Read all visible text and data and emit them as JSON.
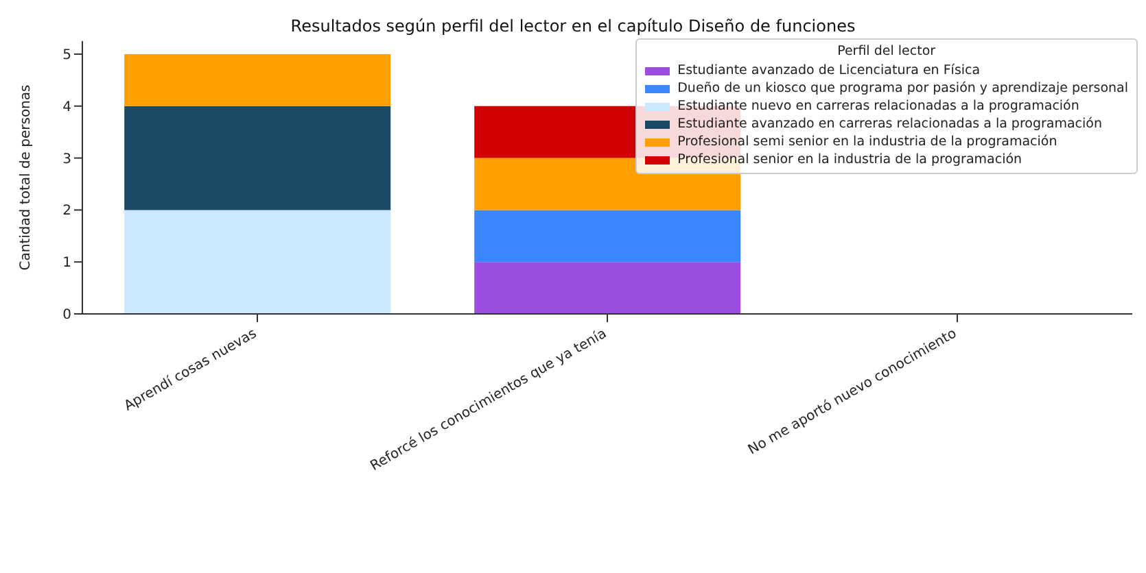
{
  "chart_data": {
    "type": "bar",
    "title": "Resultados según perfil del lector en el capítulo Diseño de funciones",
    "ylabel": "Cantidad total de personas",
    "legend_title": "Perfil del lector",
    "categories": [
      "Aprendí cosas nuevas",
      "Reforcé los conocimientos que ya tenía",
      "No me aportó nuevo conocimiento"
    ],
    "stacked": true,
    "ylim": [
      0,
      5.25
    ],
    "yticks": [
      0,
      1,
      2,
      3,
      4,
      5
    ],
    "grid": false,
    "legend": "top right",
    "series": [
      {
        "name": "Estudiante avanzado de Licenciatura en Física",
        "color": "#9b4ddf",
        "values": [
          0,
          1,
          0
        ]
      },
      {
        "name": "Dueño de un kiosco que programa por pasión y aprendizaje personal",
        "color": "#3a86ff",
        "values": [
          0,
          1,
          0
        ]
      },
      {
        "name": "Estudiante nuevo en carreras relacionadas a la programación",
        "color": "#cae9ff",
        "values": [
          2,
          0,
          0
        ]
      },
      {
        "name": "Estudiante avanzado en carreras relacionadas a la programación",
        "color": "#1b4965",
        "values": [
          2,
          0,
          0
        ]
      },
      {
        "name": "Profesional semi senior en la industria de la programación",
        "color": "#ffa000",
        "values": [
          1,
          1,
          0
        ]
      },
      {
        "name": "Profesional senior en la industria de la programación",
        "color": "#d00000",
        "values": [
          0,
          1,
          0
        ]
      }
    ]
  }
}
